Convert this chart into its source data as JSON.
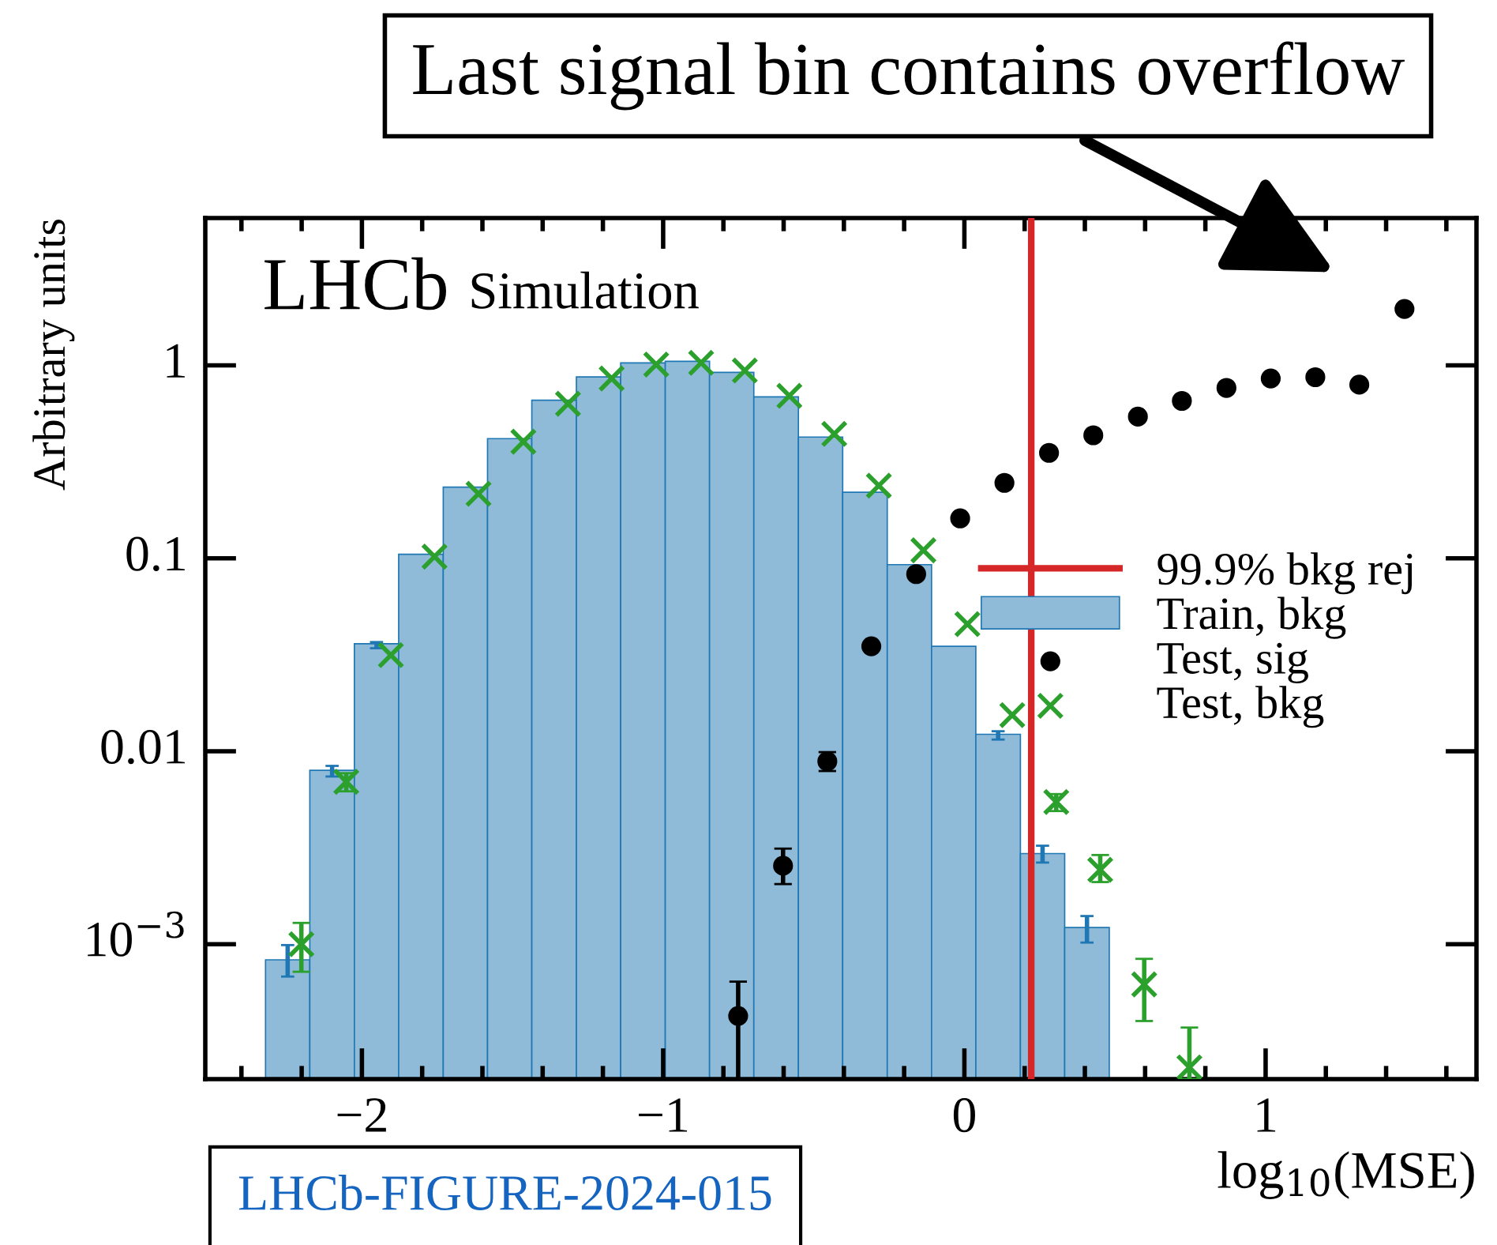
{
  "chart_data": {
    "type": "histogram",
    "xlabel": "log$_{10}$(MSE)",
    "ylabel": "Arbitrary units",
    "bins": [
      -2.32,
      -2.173,
      -2.025,
      -1.878,
      -1.73,
      -1.583,
      -1.436,
      -1.288,
      -1.141,
      -0.993,
      -0.846,
      -0.699,
      -0.551,
      -0.404,
      -0.256,
      -0.109,
      0.038,
      0.186,
      0.333,
      0.481
    ],
    "series": [
      {
        "name": "Train, bkg",
        "color": "#8fbbd9",
        "values": [
          0.00083,
          0.00797,
          0.0361,
          0.105,
          0.234,
          0.417,
          0.66,
          0.871,
          1.03,
          1.05,
          0.92,
          0.686,
          0.425,
          0.22,
          0.0927,
          0.035,
          0.01225,
          0.00295,
          0.00122
        ],
        "errors": [
          [
            0.00068,
            0.00099
          ],
          [
            0.0074,
            0.0084
          ],
          [
            0.0342,
            0.0368
          ],
          null,
          null,
          null,
          null,
          null,
          null,
          null,
          null,
          null,
          null,
          null,
          null,
          null,
          [
            0.0115,
            0.0127
          ],
          [
            0.00265,
            0.00324
          ],
          [
            0.00102,
            0.0014
          ]
        ]
      },
      {
        "name": "Test, sig",
        "type": "scatter",
        "color": "#000000",
        "marker": "circle",
        "x": [
          -0.751,
          -0.602,
          -0.455,
          -0.309,
          -0.16,
          -0.014,
          0.133,
          0.281,
          0.428,
          0.576,
          0.722,
          0.87,
          1.017,
          1.165,
          1.311,
          1.461
        ],
        "values": [
          0.000425,
          0.00255,
          0.00887,
          0.035,
          0.0828,
          0.161,
          0.246,
          0.352,
          0.434,
          0.542,
          0.654,
          0.764,
          0.855,
          0.868,
          0.794,
          1.96
        ],
        "errors": [
          [
            0.0002,
            0.00064
          ],
          [
            0.00205,
            0.00313
          ],
          [
            0.0079,
            0.0099
          ],
          null,
          null,
          null,
          null,
          null,
          null,
          null,
          null,
          null,
          null,
          null,
          null,
          null
        ]
      },
      {
        "name": "Test, bkg",
        "type": "scatter",
        "color": "#2ca02c",
        "marker": "cross",
        "x": [
          -2.201,
          -2.052,
          -1.904,
          -1.759,
          -1.613,
          -1.464,
          -1.316,
          -1.171,
          -1.023,
          -0.874,
          -0.729,
          -0.581,
          -0.432,
          -0.284,
          -0.136,
          0.01,
          0.159,
          0.305,
          0.451,
          0.597,
          0.747
        ],
        "values": [
          0.001,
          0.00695,
          0.0315,
          0.102,
          0.216,
          0.402,
          0.632,
          0.855,
          1.01,
          1.03,
          0.94,
          0.695,
          0.441,
          0.238,
          0.11,
          0.0456,
          0.0154,
          0.00546,
          0.00243,
          0.000619,
          0.00023
        ],
        "errors": [
          [
            0.00072,
            0.00129
          ],
          [
            0.0062,
            0.0077
          ],
          null,
          null,
          null,
          null,
          null,
          null,
          null,
          null,
          null,
          null,
          null,
          null,
          null,
          null,
          null,
          [
            0.0049,
            0.006
          ],
          [
            0.0021,
            0.0029
          ],
          [
            0.0004,
            0.00084
          ],
          [
            0.0002,
            0.00037
          ]
        ]
      }
    ],
    "ref_lines": [
      {
        "axis": "x",
        "value": 0.222,
        "label": "99.9% bkg rej",
        "color": "#d62728"
      }
    ],
    "annotations": [
      "LHCb",
      "Simulation",
      "LHCb-FIGURE-2024-015",
      {
        "text": "Last signal bin contains overflow",
        "x": 1.461,
        "y": 1.96
      }
    ],
    "xlim": [
      -2.52,
      1.7
    ],
    "xticks": [
      {
        "value": -2,
        "label": "−2"
      },
      {
        "value": -1,
        "label": "−1"
      },
      0,
      1
    ],
    "ylim": [
      0.0002,
      5.8
    ],
    "yticks": [
      {
        "value": 0.001,
        "label": "10$^{−3}$"
      },
      0.01,
      0.1,
      1
    ],
    "log": "y",
    "grid": false,
    "legend": "right"
  }
}
